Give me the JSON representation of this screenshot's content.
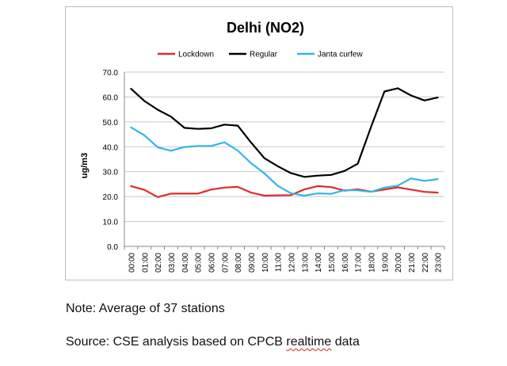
{
  "chart_data": {
    "type": "line",
    "title": "Delhi (NO2)",
    "ylabel": "ug/m3",
    "xlabel": "",
    "ylim": [
      0,
      70
    ],
    "y_ticks": [
      "0.0",
      "10.0",
      "20.0",
      "30.0",
      "40.0",
      "50.0",
      "60.0",
      "70.0"
    ],
    "grid": true,
    "legend_position": "top",
    "categories": [
      "00:00",
      "01:00",
      "02:00",
      "03:00",
      "04:00",
      "05:00",
      "06:00",
      "07:00",
      "08:00",
      "09:00",
      "10:00",
      "11:00",
      "12:00",
      "13:00",
      "14:00",
      "15:00",
      "16:00",
      "17:00",
      "18:00",
      "19:00",
      "20:00",
      "21:00",
      "22:00",
      "23:00"
    ],
    "series": [
      {
        "name": "Lockdown",
        "color": "#e02b2b",
        "values": [
          24.2,
          22.7,
          19.8,
          21.2,
          21.2,
          21.2,
          22.8,
          23.6,
          23.9,
          21.6,
          20.4,
          20.5,
          20.6,
          22.9,
          24.2,
          23.8,
          22.4,
          22.9,
          22.0,
          22.8,
          23.7,
          22.8,
          21.9,
          21.6
        ]
      },
      {
        "name": "Regular",
        "color": "#000000",
        "values": [
          63.3,
          58.4,
          54.9,
          52.1,
          47.6,
          47.2,
          47.4,
          48.9,
          48.5,
          41.7,
          35.4,
          32.2,
          29.4,
          27.9,
          28.4,
          28.7,
          30.3,
          33.2,
          48.0,
          62.2,
          63.5,
          60.6,
          58.6,
          59.8
        ]
      },
      {
        "name": "Janta curfew",
        "color": "#33b5e5",
        "values": [
          47.8,
          44.6,
          39.8,
          38.4,
          39.9,
          40.3,
          40.3,
          41.8,
          38.5,
          33.4,
          29.3,
          24.3,
          21.3,
          20.4,
          21.3,
          21.1,
          22.6,
          22.5,
          21.9,
          23.6,
          24.4,
          27.3,
          26.3,
          27.0
        ]
      }
    ]
  },
  "notes": {
    "note": "Note: Average of 37 stations",
    "source_prefix": "Source: CSE analysis based on CPCB ",
    "source_flagged_word": "realtime",
    "source_suffix": " data"
  }
}
